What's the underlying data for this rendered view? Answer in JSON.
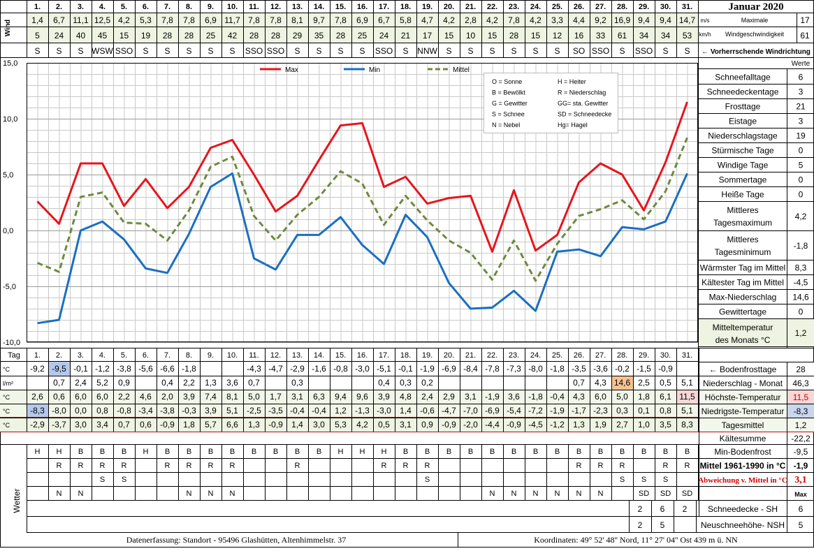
{
  "page_title": "Januar 2020",
  "wind": {
    "section_label": "Wind",
    "unit_ms": "m/s",
    "unit_kmh": "km/h",
    "days": [
      "1.",
      "2.",
      "3.",
      "4.",
      "5.",
      "6.",
      "7.",
      "8.",
      "9.",
      "10.",
      "11.",
      "12.",
      "13.",
      "14.",
      "15.",
      "16.",
      "17.",
      "18.",
      "19.",
      "20.",
      "21.",
      "22.",
      "23.",
      "24.",
      "25.",
      "26.",
      "27.",
      "28.",
      "29.",
      "30.",
      "31."
    ],
    "ms": [
      "1,4",
      "6,7",
      "11,1",
      "12,5",
      "4,2",
      "5,3",
      "7,8",
      "7,8",
      "6,9",
      "11,7",
      "7,8",
      "7,8",
      "8,1",
      "9,7",
      "7,8",
      "6,9",
      "6,7",
      "5,8",
      "4,7",
      "4,2",
      "2,8",
      "4,2",
      "7,8",
      "4,2",
      "3,3",
      "4,4",
      "9,2",
      "16,9",
      "9,4",
      "9,4",
      "14,7"
    ],
    "kmh": [
      "5",
      "24",
      "40",
      "45",
      "15",
      "19",
      "28",
      "28",
      "25",
      "42",
      "28",
      "28",
      "29",
      "35",
      "28",
      "25",
      "24",
      "21",
      "17",
      "15",
      "10",
      "15",
      "28",
      "15",
      "12",
      "16",
      "33",
      "61",
      "34",
      "34",
      "53"
    ],
    "dir": [
      "S",
      "S",
      "S",
      "WSW",
      "SSO",
      "S",
      "S",
      "S",
      "S",
      "S",
      "SSO",
      "SSO",
      "S",
      "S",
      "S",
      "S",
      "SSO",
      "S",
      "NNW",
      "S",
      "S",
      "S",
      "S",
      "S",
      "S",
      "SO",
      "SSO",
      "S",
      "SSO",
      "S",
      "S"
    ],
    "max_label_1": "Maximale",
    "max_label_2": "Windgeschwindigkeit",
    "max_ms": "17",
    "max_kmh": "61",
    "dir_note": "← Vorherrschende Windrichtung"
  },
  "legend": {
    "max": "Max",
    "min": "Min",
    "mittel": "Mittel",
    "codes": [
      [
        "O = Sonne",
        "H = Heiter"
      ],
      [
        "B = Bewölkt",
        "R = Niederschlag"
      ],
      [
        "G = Gewitter",
        "GG= sta. Gewitter"
      ],
      [
        "S = Schnee",
        "SD = Schneedecke"
      ],
      [
        "N = Nebel",
        "Hg= Hagel"
      ]
    ]
  },
  "chart_data": {
    "type": "line",
    "x": [
      1,
      2,
      3,
      4,
      5,
      6,
      7,
      8,
      9,
      10,
      11,
      12,
      13,
      14,
      15,
      16,
      17,
      18,
      19,
      20,
      21,
      22,
      23,
      24,
      25,
      26,
      27,
      28,
      29,
      30,
      31
    ],
    "ylim": [
      -10,
      15
    ],
    "yticks": [
      "15,0",
      "10,0",
      "5,0",
      "0,0",
      "-5,0",
      "-10,0"
    ],
    "grid": true,
    "legend_position": "top",
    "series": [
      {
        "name": "Max",
        "color": "#e8141c",
        "dash": false,
        "values": [
          2.6,
          0.6,
          6.0,
          6.0,
          2.2,
          4.6,
          2.0,
          3.9,
          7.4,
          8.1,
          5.0,
          1.7,
          3.1,
          6.3,
          9.4,
          9.6,
          3.9,
          4.8,
          2.4,
          2.9,
          3.1,
          -1.9,
          3.6,
          -1.8,
          -0.4,
          4.3,
          6.0,
          5.0,
          1.8,
          6.1,
          11.5
        ]
      },
      {
        "name": "Min",
        "color": "#1a6fc1",
        "dash": false,
        "values": [
          -8.3,
          -8.0,
          0.0,
          0.8,
          -0.8,
          -3.4,
          -3.8,
          -0.3,
          3.9,
          5.1,
          -2.5,
          -3.5,
          -0.4,
          -0.4,
          1.2,
          -1.3,
          -3.0,
          1.4,
          -0.6,
          -4.7,
          -7.0,
          -6.9,
          -5.4,
          -7.2,
          -1.9,
          -1.7,
          -2.3,
          0.3,
          0.1,
          0.8,
          5.1
        ]
      },
      {
        "name": "Mittel",
        "color": "#6e8a3c",
        "dash": true,
        "values": [
          -2.9,
          -3.7,
          3.0,
          3.4,
          0.7,
          0.6,
          -0.9,
          1.8,
          5.7,
          6.6,
          1.3,
          -0.9,
          1.4,
          3.0,
          5.3,
          4.2,
          0.5,
          3.1,
          0.9,
          -0.9,
          -2.0,
          -4.4,
          -0.9,
          -4.5,
          -1.2,
          1.3,
          1.9,
          2.7,
          1.0,
          3.5,
          8.3
        ]
      }
    ]
  },
  "stats": {
    "header": "Werte",
    "items": [
      {
        "label": "Schneefalltage",
        "value": "6"
      },
      {
        "label": "Schneedeckentage",
        "value": "3"
      },
      {
        "label": "Frosttage",
        "value": "21"
      },
      {
        "label": "Eistage",
        "value": "3"
      },
      {
        "label": "Niederschlagstage",
        "value": "19"
      },
      {
        "label": "Stürmische Tage",
        "value": "0"
      },
      {
        "label": "Windige Tage",
        "value": "5"
      },
      {
        "label": "Sommertage",
        "value": "0"
      },
      {
        "label": "Heiße Tage",
        "value": "0"
      },
      {
        "label": "Mittleres Tagesmaximum",
        "value": "4,2"
      },
      {
        "label": "Mittleres Tagesminimum",
        "value": "-1,8"
      },
      {
        "label": "Wärmster Tag im Mittel",
        "value": "8,3"
      },
      {
        "label": "Kältester Tag im Mittel",
        "value": "-4,5"
      },
      {
        "label": "Max-Niederschlag",
        "value": "14,6"
      },
      {
        "label": "Gewittertage",
        "value": "0"
      },
      {
        "label": "Mitteltemperatur des Monats °C",
        "value": "1,2"
      }
    ]
  },
  "table": {
    "tag_label": "Tag",
    "days": [
      "1.",
      "2.",
      "3.",
      "4.",
      "5.",
      "6.",
      "7.",
      "8.",
      "9.",
      "10.",
      "11.",
      "12.",
      "13.",
      "14.",
      "15.",
      "16.",
      "17.",
      "18.",
      "19.",
      "20.",
      "21.",
      "22.",
      "23.",
      "24.",
      "25.",
      "26.",
      "27.",
      "28.",
      "29.",
      "30.",
      "31."
    ],
    "rows": [
      {
        "unit": "°C",
        "label": "← Bodenfrosttage",
        "value": "28",
        "cells": [
          "-9,2",
          "-9,5",
          "-0,1",
          "-1,2",
          "-3,8",
          "-5,6",
          "-6,6",
          "-1,8",
          "",
          "",
          "-4,3",
          "-4,7",
          "-2,9",
          "-1,6",
          "-0,8",
          "-3,0",
          "-5,1",
          "-0,1",
          "-1,9",
          "-6,9",
          "-8,4",
          "-7,8",
          "-7,3",
          "-8,0",
          "-1,8",
          "-3,5",
          "-3,6",
          "-0,2",
          "-1,5",
          "-0,9",
          ""
        ]
      },
      {
        "unit": "l/m²",
        "label": "Niederschlag - Monat",
        "value": "46,3",
        "cells": [
          "",
          "0,7",
          "2,4",
          "5,2",
          "0,9",
          "",
          "0,4",
          "2,2",
          "1,3",
          "3,6",
          "0,7",
          "",
          "0,3",
          "",
          "",
          "",
          "0,4",
          "0,3",
          "0,2",
          "",
          "",
          "",
          "",
          "",
          "",
          "0,7",
          "4,3",
          "14,6",
          "2,5",
          "0,5",
          "5,1"
        ]
      },
      {
        "unit": "°C",
        "label": "Höchste-Temperatur",
        "value": "11,5",
        "cells": [
          "2,6",
          "0,6",
          "6,0",
          "6,0",
          "2,2",
          "4,6",
          "2,0",
          "3,9",
          "7,4",
          "8,1",
          "5,0",
          "1,7",
          "3,1",
          "6,3",
          "9,4",
          "9,6",
          "3,9",
          "4,8",
          "2,4",
          "2,9",
          "3,1",
          "-1,9",
          "3,6",
          "-1,8",
          "-0,4",
          "4,3",
          "6,0",
          "5,0",
          "1,8",
          "6,1",
          "11,5"
        ]
      },
      {
        "unit": "°C",
        "label": "Niedrigste-Temperatur",
        "value": "-8,3",
        "cells": [
          "-8,3",
          "-8,0",
          "0,0",
          "0,8",
          "-0,8",
          "-3,4",
          "-3,8",
          "-0,3",
          "3,9",
          "5,1",
          "-2,5",
          "-3,5",
          "-0,4",
          "-0,4",
          "1,2",
          "-1,3",
          "-3,0",
          "1,4",
          "-0,6",
          "-4,7",
          "-7,0",
          "-6,9",
          "-5,4",
          "-7,2",
          "-1,9",
          "-1,7",
          "-2,3",
          "0,3",
          "0,1",
          "0,8",
          "5,1"
        ]
      },
      {
        "unit": "°C",
        "label": "Tagesmittel",
        "value": "1,2",
        "cells": [
          "-2,9",
          "-3,7",
          "3,0",
          "3,4",
          "0,7",
          "0,6",
          "-0,9",
          "1,8",
          "5,7",
          "6,6",
          "1,3",
          "-0,9",
          "1,4",
          "3,0",
          "5,3",
          "4,2",
          "0,5",
          "3,1",
          "0,9",
          "-0,9",
          "-2,0",
          "-4,4",
          "-0,9",
          "-4,5",
          "-1,2",
          "1,3",
          "1,9",
          "2,7",
          "1,0",
          "3,5",
          "8,3"
        ]
      }
    ]
  },
  "extra": [
    {
      "label": "Kältesumme",
      "value": "-22,2"
    },
    {
      "label": "Min-Bodenfrost",
      "value": "-9,5"
    },
    {
      "label": "Mittel 1961-1990 in °C",
      "value": "-1,9"
    },
    {
      "label": "Abweichung v. Mittel in °C",
      "value": "3,1"
    }
  ],
  "max_header": "Max",
  "weather": {
    "label": "Wetter",
    "rows": [
      [
        "H",
        "H",
        "B",
        "B",
        "B",
        "H",
        "B",
        "B",
        "B",
        "B",
        "B",
        "B",
        "B",
        "B",
        "H",
        "H",
        "H",
        "B",
        "B",
        "B",
        "B",
        "B",
        "B",
        "B",
        "B",
        "B",
        "B",
        "B",
        "B",
        "B",
        "B"
      ],
      [
        "",
        "R",
        "R",
        "R",
        "R",
        "",
        "R",
        "R",
        "R",
        "R",
        "",
        "",
        "R",
        "",
        "",
        "",
        "R",
        "R",
        "R",
        "",
        "",
        "",
        "",
        "",
        "",
        "R",
        "R",
        "R",
        "",
        "R",
        "R"
      ],
      [
        "",
        "",
        "",
        "S",
        "S",
        "",
        "",
        "",
        "",
        "",
        "",
        "",
        "",
        "",
        "",
        "",
        "",
        "",
        "S",
        "",
        "",
        "",
        "",
        "",
        "",
        "",
        "",
        "S",
        "S",
        "S",
        ""
      ],
      [
        "",
        "N",
        "N",
        "",
        "",
        "",
        "",
        "N",
        "N",
        "N",
        "",
        "",
        "",
        "",
        "",
        "",
        "",
        "",
        "",
        "",
        "",
        "N",
        "N",
        "N",
        "N",
        "N",
        "N",
        "",
        "SD",
        "SD",
        "SD"
      ]
    ]
  },
  "snow": [
    {
      "label": "Schneedecke -  SH",
      "value": "6",
      "cells": [
        "2",
        "6",
        "2"
      ]
    },
    {
      "label": "Neuschneehöhe- NSH",
      "value": "5",
      "cells": [
        "2",
        "5",
        ""
      ]
    }
  ],
  "footer": {
    "left": "Datenerfassung:  Standort -  95496  Glashütten, Altenhimmelstr. 37",
    "right": "Koordinaten:  49° 52' 48'' Nord,   11° 27' 04'' Ost   439 m ü. NN"
  }
}
